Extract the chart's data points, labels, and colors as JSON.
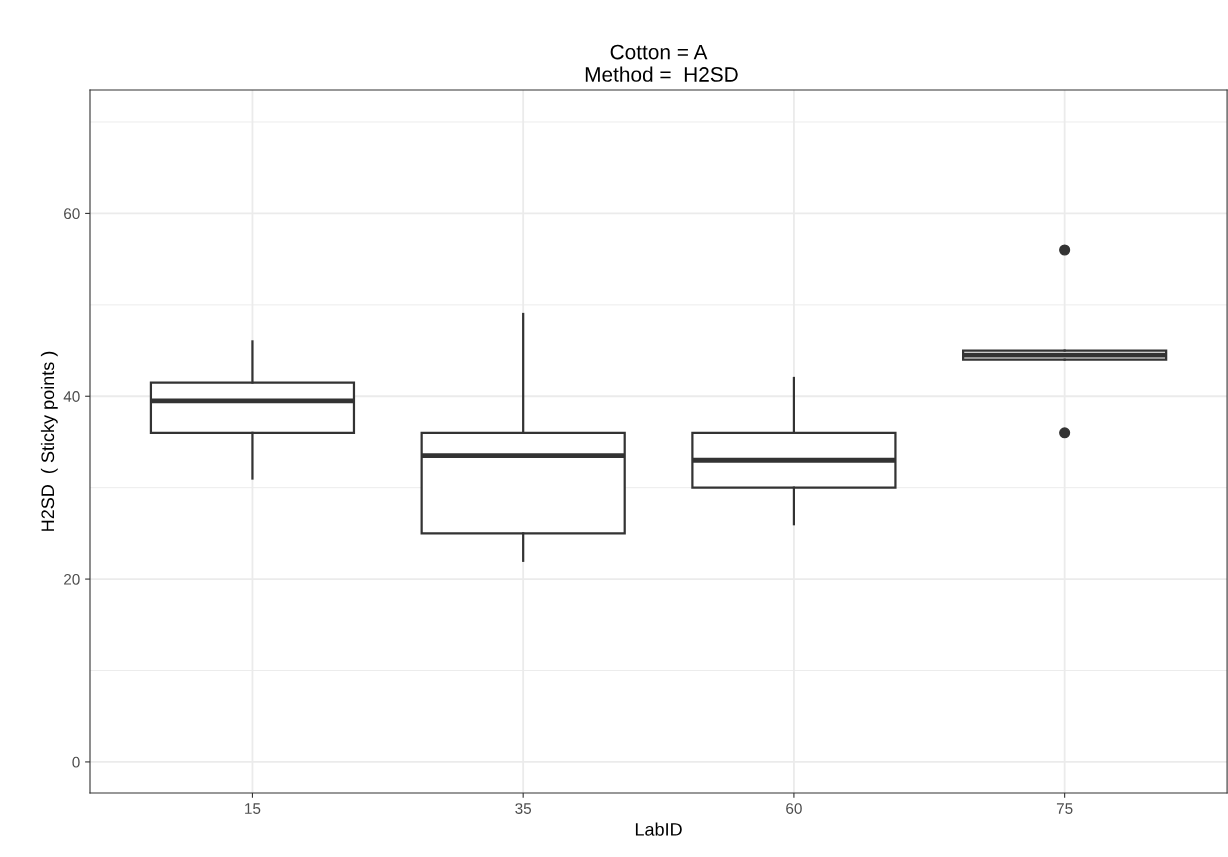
{
  "chart_data": {
    "type": "box",
    "title": "Cotton = A\n Method =  H2SD",
    "xlabel": "LabID",
    "ylabel": "H2SD  ( Sticky points )",
    "categories": [
      "15",
      "35",
      "60",
      "75"
    ],
    "boxes": [
      {
        "low": 31,
        "q1": 36,
        "median": 39.5,
        "q3": 41.5,
        "high": 46
      },
      {
        "low": 22,
        "q1": 25,
        "median": 33.5,
        "q3": 36,
        "high": 49
      },
      {
        "low": 26,
        "q1": 30,
        "median": 33,
        "q3": 36,
        "high": 42
      },
      {
        "low": 44,
        "q1": 44,
        "median": 44.5,
        "q3": 45,
        "high": 45,
        "outliers": [
          56,
          36
        ]
      }
    ],
    "color": "#333333",
    "ylim": [
      -3.4,
      73.5
    ],
    "yticks": [
      0,
      20,
      40,
      60
    ],
    "grid": true
  }
}
